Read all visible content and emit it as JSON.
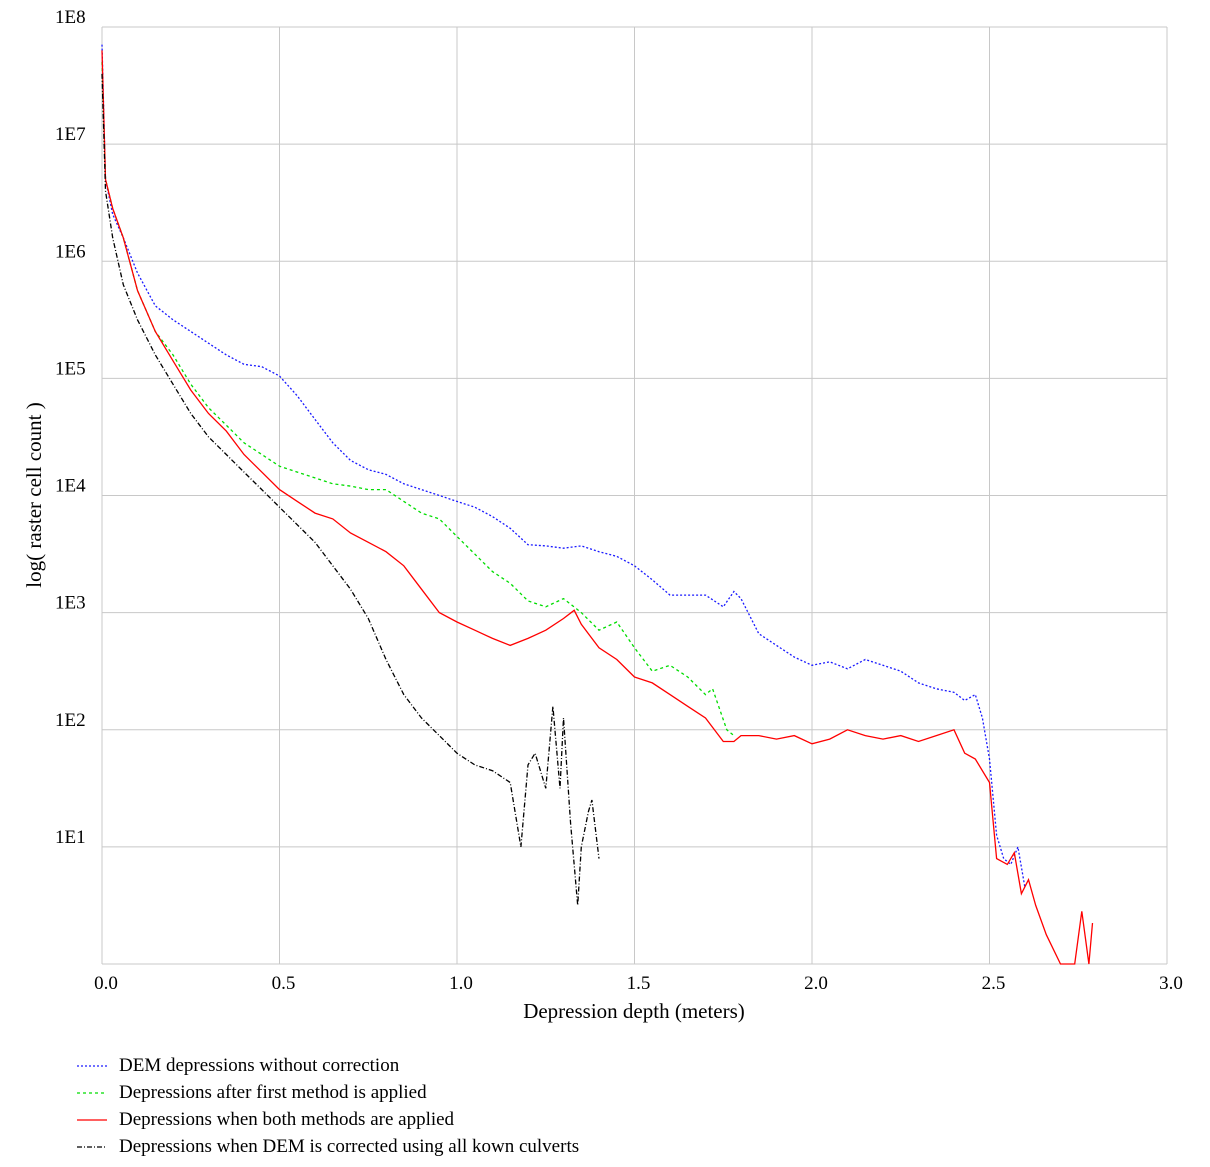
{
  "chart_data": {
    "type": "line",
    "xlabel": "Depression depth (meters)",
    "ylabel": "log( raster cell count )",
    "xlim": [
      0.0,
      3.0
    ],
    "ylim": [
      0,
      8
    ],
    "y_scale": "log10",
    "grid": true,
    "legend_position": "bottom-left",
    "x_ticks": [
      {
        "v": 0.0,
        "label": "0.0"
      },
      {
        "v": 0.5,
        "label": "0.5"
      },
      {
        "v": 1.0,
        "label": "1.0"
      },
      {
        "v": 1.5,
        "label": "1.5"
      },
      {
        "v": 2.0,
        "label": "2.0"
      },
      {
        "v": 2.5,
        "label": "2.5"
      },
      {
        "v": 3.0,
        "label": "3.0"
      }
    ],
    "y_ticks": [
      {
        "v": 1,
        "label": "1E1"
      },
      {
        "v": 2,
        "label": "1E2"
      },
      {
        "v": 3,
        "label": "1E3"
      },
      {
        "v": 4,
        "label": "1E4"
      },
      {
        "v": 5,
        "label": "1E5"
      },
      {
        "v": 6,
        "label": "1E6"
      },
      {
        "v": 7,
        "label": "1E7"
      },
      {
        "v": 8,
        "label": "1E8"
      }
    ],
    "series": [
      {
        "name": "DEM depressions without correction",
        "color": "#1a1aff",
        "dash": "2,2",
        "points": [
          [
            0.0,
            7.85
          ],
          [
            0.01,
            6.7
          ],
          [
            0.03,
            6.4
          ],
          [
            0.06,
            6.2
          ],
          [
            0.1,
            5.9
          ],
          [
            0.15,
            5.62
          ],
          [
            0.2,
            5.5
          ],
          [
            0.25,
            5.4
          ],
          [
            0.3,
            5.3
          ],
          [
            0.35,
            5.2
          ],
          [
            0.4,
            5.12
          ],
          [
            0.45,
            5.1
          ],
          [
            0.5,
            5.02
          ],
          [
            0.55,
            4.85
          ],
          [
            0.6,
            4.65
          ],
          [
            0.65,
            4.45
          ],
          [
            0.7,
            4.3
          ],
          [
            0.75,
            4.22
          ],
          [
            0.8,
            4.18
          ],
          [
            0.85,
            4.1
          ],
          [
            0.9,
            4.05
          ],
          [
            0.95,
            4.0
          ],
          [
            1.0,
            3.95
          ],
          [
            1.05,
            3.9
          ],
          [
            1.1,
            3.82
          ],
          [
            1.15,
            3.72
          ],
          [
            1.2,
            3.58
          ],
          [
            1.25,
            3.57
          ],
          [
            1.3,
            3.55
          ],
          [
            1.35,
            3.57
          ],
          [
            1.4,
            3.52
          ],
          [
            1.45,
            3.48
          ],
          [
            1.5,
            3.4
          ],
          [
            1.55,
            3.28
          ],
          [
            1.6,
            3.15
          ],
          [
            1.65,
            3.15
          ],
          [
            1.7,
            3.15
          ],
          [
            1.75,
            3.05
          ],
          [
            1.78,
            3.18
          ],
          [
            1.8,
            3.12
          ],
          [
            1.85,
            2.82
          ],
          [
            1.9,
            2.72
          ],
          [
            1.95,
            2.62
          ],
          [
            2.0,
            2.55
          ],
          [
            2.05,
            2.58
          ],
          [
            2.1,
            2.52
          ],
          [
            2.15,
            2.6
          ],
          [
            2.2,
            2.55
          ],
          [
            2.25,
            2.5
          ],
          [
            2.3,
            2.4
          ],
          [
            2.35,
            2.35
          ],
          [
            2.4,
            2.32
          ],
          [
            2.43,
            2.25
          ],
          [
            2.46,
            2.3
          ],
          [
            2.48,
            2.1
          ],
          [
            2.5,
            1.75
          ],
          [
            2.52,
            1.1
          ],
          [
            2.54,
            0.9
          ],
          [
            2.56,
            0.85
          ],
          [
            2.58,
            1.0
          ],
          [
            2.6,
            0.65
          ]
        ]
      },
      {
        "name": "Depressions after first method is applied",
        "color": "#00dd00",
        "dash": "3,3",
        "points": [
          [
            0.0,
            7.7
          ],
          [
            0.01,
            6.7
          ],
          [
            0.03,
            6.45
          ],
          [
            0.06,
            6.2
          ],
          [
            0.1,
            5.75
          ],
          [
            0.15,
            5.4
          ],
          [
            0.2,
            5.2
          ],
          [
            0.25,
            4.95
          ],
          [
            0.3,
            4.75
          ],
          [
            0.35,
            4.6
          ],
          [
            0.4,
            4.45
          ],
          [
            0.45,
            4.35
          ],
          [
            0.5,
            4.25
          ],
          [
            0.55,
            4.2
          ],
          [
            0.6,
            4.15
          ],
          [
            0.65,
            4.1
          ],
          [
            0.7,
            4.08
          ],
          [
            0.75,
            4.05
          ],
          [
            0.8,
            4.05
          ],
          [
            0.85,
            3.95
          ],
          [
            0.9,
            3.85
          ],
          [
            0.95,
            3.8
          ],
          [
            1.0,
            3.65
          ],
          [
            1.05,
            3.5
          ],
          [
            1.1,
            3.35
          ],
          [
            1.15,
            3.25
          ],
          [
            1.2,
            3.1
          ],
          [
            1.25,
            3.05
          ],
          [
            1.3,
            3.12
          ],
          [
            1.35,
            3.0
          ],
          [
            1.4,
            2.85
          ],
          [
            1.45,
            2.92
          ],
          [
            1.5,
            2.7
          ],
          [
            1.55,
            2.5
          ],
          [
            1.6,
            2.55
          ],
          [
            1.65,
            2.45
          ],
          [
            1.7,
            2.3
          ],
          [
            1.72,
            2.35
          ],
          [
            1.76,
            2.0
          ],
          [
            1.78,
            1.95
          ]
        ]
      },
      {
        "name": "Depressions when both methods are applied",
        "color": "#ff0000",
        "dash": "",
        "points": [
          [
            0.0,
            7.8
          ],
          [
            0.01,
            6.7
          ],
          [
            0.03,
            6.45
          ],
          [
            0.06,
            6.2
          ],
          [
            0.1,
            5.75
          ],
          [
            0.15,
            5.4
          ],
          [
            0.2,
            5.15
          ],
          [
            0.25,
            4.9
          ],
          [
            0.3,
            4.7
          ],
          [
            0.35,
            4.55
          ],
          [
            0.4,
            4.35
          ],
          [
            0.45,
            4.2
          ],
          [
            0.5,
            4.05
          ],
          [
            0.55,
            3.95
          ],
          [
            0.6,
            3.85
          ],
          [
            0.65,
            3.8
          ],
          [
            0.7,
            3.68
          ],
          [
            0.75,
            3.6
          ],
          [
            0.8,
            3.52
          ],
          [
            0.85,
            3.4
          ],
          [
            0.9,
            3.2
          ],
          [
            0.95,
            3.0
          ],
          [
            1.0,
            2.92
          ],
          [
            1.05,
            2.85
          ],
          [
            1.1,
            2.78
          ],
          [
            1.15,
            2.72
          ],
          [
            1.2,
            2.78
          ],
          [
            1.25,
            2.85
          ],
          [
            1.3,
            2.95
          ],
          [
            1.33,
            3.02
          ],
          [
            1.35,
            2.9
          ],
          [
            1.4,
            2.7
          ],
          [
            1.45,
            2.6
          ],
          [
            1.5,
            2.45
          ],
          [
            1.55,
            2.4
          ],
          [
            1.6,
            2.3
          ],
          [
            1.65,
            2.2
          ],
          [
            1.7,
            2.1
          ],
          [
            1.75,
            1.9
          ],
          [
            1.78,
            1.9
          ],
          [
            1.8,
            1.95
          ],
          [
            1.85,
            1.95
          ],
          [
            1.9,
            1.92
          ],
          [
            1.95,
            1.95
          ],
          [
            2.0,
            1.88
          ],
          [
            2.05,
            1.92
          ],
          [
            2.1,
            2.0
          ],
          [
            2.15,
            1.95
          ],
          [
            2.2,
            1.92
          ],
          [
            2.25,
            1.95
          ],
          [
            2.3,
            1.9
          ],
          [
            2.35,
            1.95
          ],
          [
            2.4,
            2.0
          ],
          [
            2.43,
            1.8
          ],
          [
            2.46,
            1.75
          ],
          [
            2.5,
            1.55
          ],
          [
            2.52,
            0.9
          ],
          [
            2.55,
            0.85
          ],
          [
            2.57,
            0.95
          ],
          [
            2.59,
            0.6
          ],
          [
            2.61,
            0.72
          ],
          [
            2.63,
            0.5
          ],
          [
            2.66,
            0.25
          ],
          [
            2.7,
            0.0
          ],
          [
            2.74,
            0.0
          ],
          [
            2.76,
            0.45
          ],
          [
            2.78,
            0.0
          ],
          [
            2.79,
            0.35
          ]
        ]
      },
      {
        "name": "Depressions when DEM is corrected using all kown culverts",
        "color": "#000000",
        "dash": "5,2,1,2",
        "points": [
          [
            0.0,
            7.6
          ],
          [
            0.01,
            6.6
          ],
          [
            0.03,
            6.2
          ],
          [
            0.06,
            5.8
          ],
          [
            0.1,
            5.5
          ],
          [
            0.15,
            5.2
          ],
          [
            0.2,
            4.95
          ],
          [
            0.25,
            4.7
          ],
          [
            0.3,
            4.5
          ],
          [
            0.35,
            4.35
          ],
          [
            0.4,
            4.2
          ],
          [
            0.45,
            4.05
          ],
          [
            0.5,
            3.9
          ],
          [
            0.55,
            3.75
          ],
          [
            0.6,
            3.6
          ],
          [
            0.65,
            3.4
          ],
          [
            0.7,
            3.2
          ],
          [
            0.75,
            2.95
          ],
          [
            0.8,
            2.6
          ],
          [
            0.85,
            2.3
          ],
          [
            0.9,
            2.1
          ],
          [
            0.95,
            1.95
          ],
          [
            1.0,
            1.8
          ],
          [
            1.05,
            1.7
          ],
          [
            1.1,
            1.65
          ],
          [
            1.15,
            1.55
          ],
          [
            1.18,
            1.0
          ],
          [
            1.2,
            1.7
          ],
          [
            1.22,
            1.8
          ],
          [
            1.25,
            1.5
          ],
          [
            1.27,
            2.2
          ],
          [
            1.29,
            1.5
          ],
          [
            1.3,
            2.1
          ],
          [
            1.32,
            1.2
          ],
          [
            1.34,
            0.5
          ],
          [
            1.35,
            1.0
          ],
          [
            1.37,
            1.3
          ],
          [
            1.38,
            1.4
          ],
          [
            1.4,
            0.9
          ]
        ]
      }
    ]
  }
}
